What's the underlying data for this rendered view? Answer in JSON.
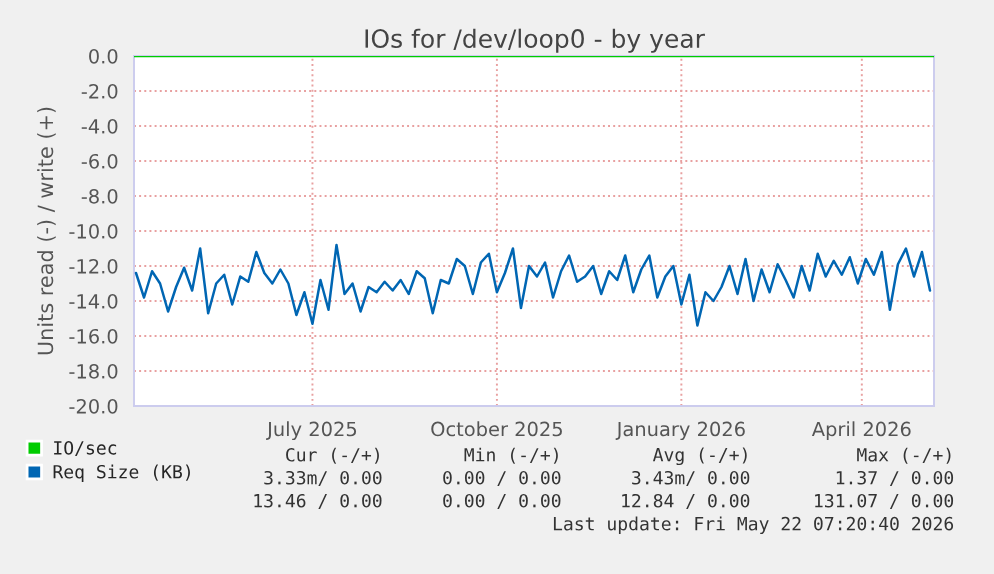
{
  "chart_data": {
    "type": "line",
    "title": "IOs for /dev/loop0 - by year",
    "ylabel": "Units read (-) / write (+)",
    "ylim": [
      -20,
      0
    ],
    "yticks": [
      {
        "value": 0,
        "label": "0.0"
      },
      {
        "value": -2,
        "label": "-2.0"
      },
      {
        "value": -4,
        "label": "-4.0"
      },
      {
        "value": -6,
        "label": "-6.0"
      },
      {
        "value": -8,
        "label": "-8.0"
      },
      {
        "value": -10,
        "label": "-10.0"
      },
      {
        "value": -12,
        "label": "-12.0"
      },
      {
        "value": -14,
        "label": "-14.0"
      },
      {
        "value": -16,
        "label": "-16.0"
      },
      {
        "value": -18,
        "label": "-18.0"
      },
      {
        "value": -20,
        "label": "-20.0"
      }
    ],
    "xlim": [
      "2025-04-18",
      "2026-05-22"
    ],
    "xticks": [
      {
        "value": "2025-07-16",
        "label": "July 2025"
      },
      {
        "value": "2025-10-16",
        "label": "October 2025"
      },
      {
        "value": "2026-01-16",
        "label": "January 2026"
      },
      {
        "value": "2026-04-16",
        "label": "April 2026"
      }
    ],
    "grid": true,
    "legend": "bottom left",
    "line_style": "solid",
    "marker": "none",
    "series": [
      {
        "name": "IO/sec",
        "color": "#00cc00",
        "x": [
          "2025-04-18",
          "2026-05-22"
        ],
        "values": [
          0,
          0
        ]
      },
      {
        "name": "Req Size (KB)",
        "color": "#0066b3",
        "x": [
          "2025-04-19",
          "2025-04-23",
          "2025-04-27",
          "2025-05-01",
          "2025-05-05",
          "2025-05-09",
          "2025-05-13",
          "2025-05-17",
          "2025-05-21",
          "2025-05-25",
          "2025-05-29",
          "2025-06-02",
          "2025-06-06",
          "2025-06-10",
          "2025-06-14",
          "2025-06-18",
          "2025-06-22",
          "2025-06-26",
          "2025-06-30",
          "2025-07-04",
          "2025-07-08",
          "2025-07-12",
          "2025-07-16",
          "2025-07-20",
          "2025-07-24",
          "2025-07-28",
          "2025-08-01",
          "2025-08-05",
          "2025-08-09",
          "2025-08-13",
          "2025-08-17",
          "2025-08-21",
          "2025-08-25",
          "2025-08-29",
          "2025-09-02",
          "2025-09-06",
          "2025-09-10",
          "2025-09-14",
          "2025-09-18",
          "2025-09-22",
          "2025-09-26",
          "2025-09-30",
          "2025-10-04",
          "2025-10-08",
          "2025-10-12",
          "2025-10-16",
          "2025-10-20",
          "2025-10-24",
          "2025-10-28",
          "2025-11-01",
          "2025-11-05",
          "2025-11-09",
          "2025-11-13",
          "2025-11-17",
          "2025-11-21",
          "2025-11-25",
          "2025-11-29",
          "2025-12-03",
          "2025-12-07",
          "2025-12-11",
          "2025-12-15",
          "2025-12-19",
          "2025-12-23",
          "2025-12-27",
          "2025-12-31",
          "2026-01-04",
          "2026-01-08",
          "2026-01-12",
          "2026-01-16",
          "2026-01-20",
          "2026-01-24",
          "2026-01-28",
          "2026-02-01",
          "2026-02-05",
          "2026-02-09",
          "2026-02-13",
          "2026-02-17",
          "2026-02-21",
          "2026-02-25",
          "2026-03-01",
          "2026-03-05",
          "2026-03-09",
          "2026-03-13",
          "2026-03-17",
          "2026-03-21",
          "2026-03-25",
          "2026-03-29",
          "2026-04-02",
          "2026-04-06",
          "2026-04-10",
          "2026-04-14",
          "2026-04-18",
          "2026-04-22",
          "2026-04-26",
          "2026-04-30",
          "2026-05-04",
          "2026-05-08",
          "2026-05-12",
          "2026-05-16",
          "2026-05-20"
        ],
        "values": [
          -12.4,
          -13.8,
          -12.3,
          -13.0,
          -14.6,
          -13.2,
          -12.1,
          -13.4,
          -11.0,
          -14.7,
          -13.0,
          -12.5,
          -14.2,
          -12.6,
          -12.9,
          -11.2,
          -12.4,
          -13.0,
          -12.2,
          -13.0,
          -14.8,
          -13.5,
          -15.3,
          -12.8,
          -14.5,
          -10.8,
          -13.6,
          -13.0,
          -14.6,
          -13.2,
          -13.5,
          -12.9,
          -13.4,
          -12.8,
          -13.6,
          -12.3,
          -12.7,
          -14.7,
          -12.8,
          -13.0,
          -11.6,
          -12.0,
          -13.6,
          -11.8,
          -11.3,
          -13.5,
          -12.4,
          -11.0,
          -14.4,
          -12.0,
          -12.6,
          -11.8,
          -13.8,
          -12.3,
          -11.4,
          -12.9,
          -12.6,
          -12.0,
          -13.6,
          -12.3,
          -12.8,
          -11.4,
          -13.5,
          -12.2,
          -11.4,
          -13.8,
          -12.6,
          -12.0,
          -14.2,
          -12.5,
          -15.4,
          -13.5,
          -14.0,
          -13.2,
          -12.0,
          -13.6,
          -11.6,
          -14.0,
          -12.2,
          -13.5,
          -11.9,
          -12.8,
          -13.8,
          -12.0,
          -13.4,
          -11.3,
          -12.6,
          -11.7,
          -12.5,
          -11.5,
          -13.0,
          -11.6,
          -12.5,
          -11.2,
          -14.5,
          -11.9,
          -11.0,
          -12.6,
          -11.2,
          -13.4
        ]
      }
    ],
    "annotations": [
      "Cur (-/+)",
      "Min (-/+)",
      "Avg (-/+)",
      "Max (-/+)",
      "3.33m/ 0.00",
      "0.00 / 0.00",
      "3.43m/ 0.00",
      "1.37 / 0.00",
      "13.46 / 0.00",
      "0.00 / 0.00",
      "12.84 / 0.00",
      "131.07 / 0.00",
      "Last update: Fri May 22 07:20:40 2026"
    ]
  }
}
